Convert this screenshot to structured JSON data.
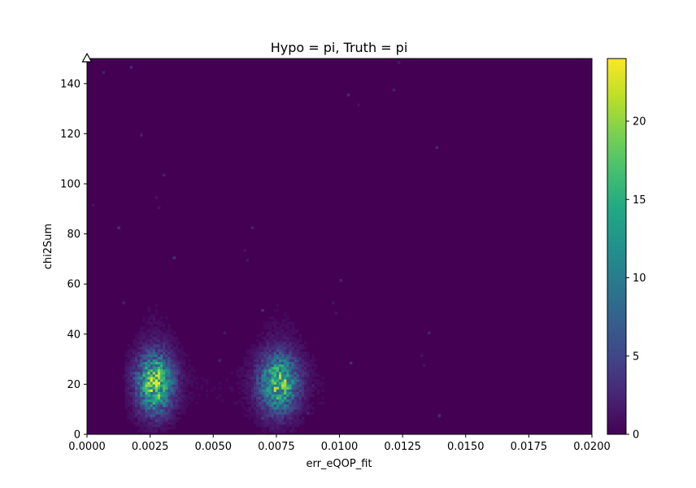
{
  "chart_data": {
    "type": "heatmap",
    "title": "Hypo = pi, Truth = pi",
    "xlabel": "err_eQOP_fit",
    "ylabel": "chi2Sum",
    "xlim": [
      0.0,
      0.02
    ],
    "ylim": [
      0,
      150
    ],
    "x_ticks": [
      "0.0000",
      "0.0025",
      "0.0050",
      "0.0075",
      "0.0100",
      "0.0125",
      "0.0150",
      "0.0175",
      "0.0200"
    ],
    "y_ticks": [
      "0",
      "20",
      "40",
      "60",
      "80",
      "100",
      "120",
      "140"
    ],
    "colorbar": {
      "range": [
        0,
        24
      ],
      "ticks": [
        "0",
        "5",
        "10",
        "15",
        "20"
      ],
      "colormap": "viridis"
    },
    "bins": {
      "x": 200,
      "y": 150
    },
    "clusters": [
      {
        "x_center": 0.0027,
        "y_center": 20,
        "x_sigma": 0.00045,
        "y_sigma": 7.5,
        "peak_count": 24
      },
      {
        "x_center": 0.0076,
        "y_center": 20,
        "x_sigma": 0.0005,
        "y_sigma": 7.5,
        "peak_count": 21
      }
    ],
    "marker": {
      "shape": "open-triangle",
      "x": 0.0,
      "y": 150
    }
  }
}
